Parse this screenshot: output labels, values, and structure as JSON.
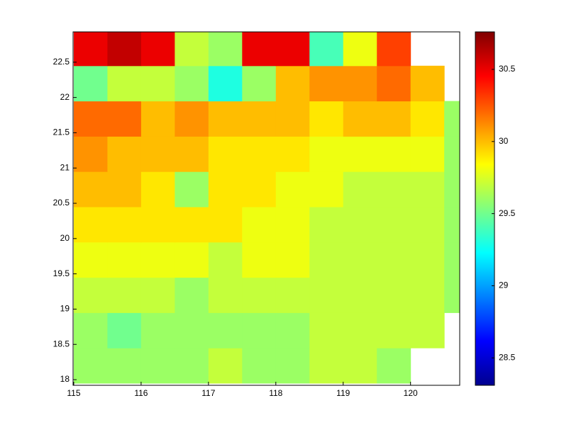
{
  "chart_data": {
    "type": "heatmap",
    "x": [
      115.25,
      115.75,
      116.25,
      116.75,
      117.25,
      117.75,
      118.25,
      118.75,
      119.25,
      119.75,
      120.25,
      120.75
    ],
    "y": [
      18.2,
      18.7,
      19.2,
      19.7,
      20.2,
      20.7,
      21.2,
      21.7,
      22.2,
      22.7
    ],
    "z": [
      [
        29.6,
        29.6,
        29.6,
        29.6,
        29.7,
        29.6,
        29.6,
        29.7,
        29.7,
        29.6,
        null,
        null
      ],
      [
        29.6,
        29.5,
        29.6,
        29.6,
        29.6,
        29.6,
        29.6,
        29.7,
        29.7,
        29.7,
        29.7,
        null
      ],
      [
        29.7,
        29.7,
        29.7,
        29.6,
        29.7,
        29.7,
        29.7,
        29.7,
        29.7,
        29.7,
        29.7,
        29.6
      ],
      [
        29.8,
        29.8,
        29.8,
        29.8,
        29.7,
        29.8,
        29.8,
        29.7,
        29.7,
        29.7,
        29.7,
        29.6
      ],
      [
        29.9,
        29.9,
        29.9,
        29.9,
        29.9,
        29.8,
        29.8,
        29.7,
        29.7,
        29.7,
        29.7,
        29.6
      ],
      [
        30.0,
        30.0,
        29.9,
        29.6,
        29.9,
        29.9,
        29.8,
        29.8,
        29.7,
        29.7,
        29.7,
        29.6
      ],
      [
        30.1,
        30.0,
        30.0,
        30.0,
        29.9,
        29.9,
        29.9,
        29.8,
        29.8,
        29.8,
        29.8,
        29.6
      ],
      [
        30.2,
        30.2,
        30.0,
        30.1,
        30.0,
        30.0,
        30.0,
        29.9,
        30.0,
        30.0,
        29.9,
        29.6
      ],
      [
        29.5,
        29.7,
        29.7,
        29.6,
        29.3,
        29.6,
        30.0,
        30.1,
        30.1,
        30.2,
        30.0,
        null
      ],
      [
        30.5,
        30.6,
        30.5,
        29.7,
        29.6,
        30.5,
        30.5,
        29.4,
        29.8,
        30.3,
        null,
        null
      ]
    ],
    "xlim": [
      114.99,
      120.73
    ],
    "xticks": [
      115,
      116,
      117,
      118,
      119,
      120
    ],
    "ylim": [
      17.92,
      22.93
    ],
    "yticks": [
      18,
      18.5,
      19,
      19.5,
      20,
      20.5,
      21,
      21.5,
      22,
      22.5
    ],
    "clim": [
      28.31,
      30.76
    ],
    "cticks": [
      28.5,
      29,
      29.5,
      30,
      30.5
    ],
    "colormap": "jet"
  }
}
